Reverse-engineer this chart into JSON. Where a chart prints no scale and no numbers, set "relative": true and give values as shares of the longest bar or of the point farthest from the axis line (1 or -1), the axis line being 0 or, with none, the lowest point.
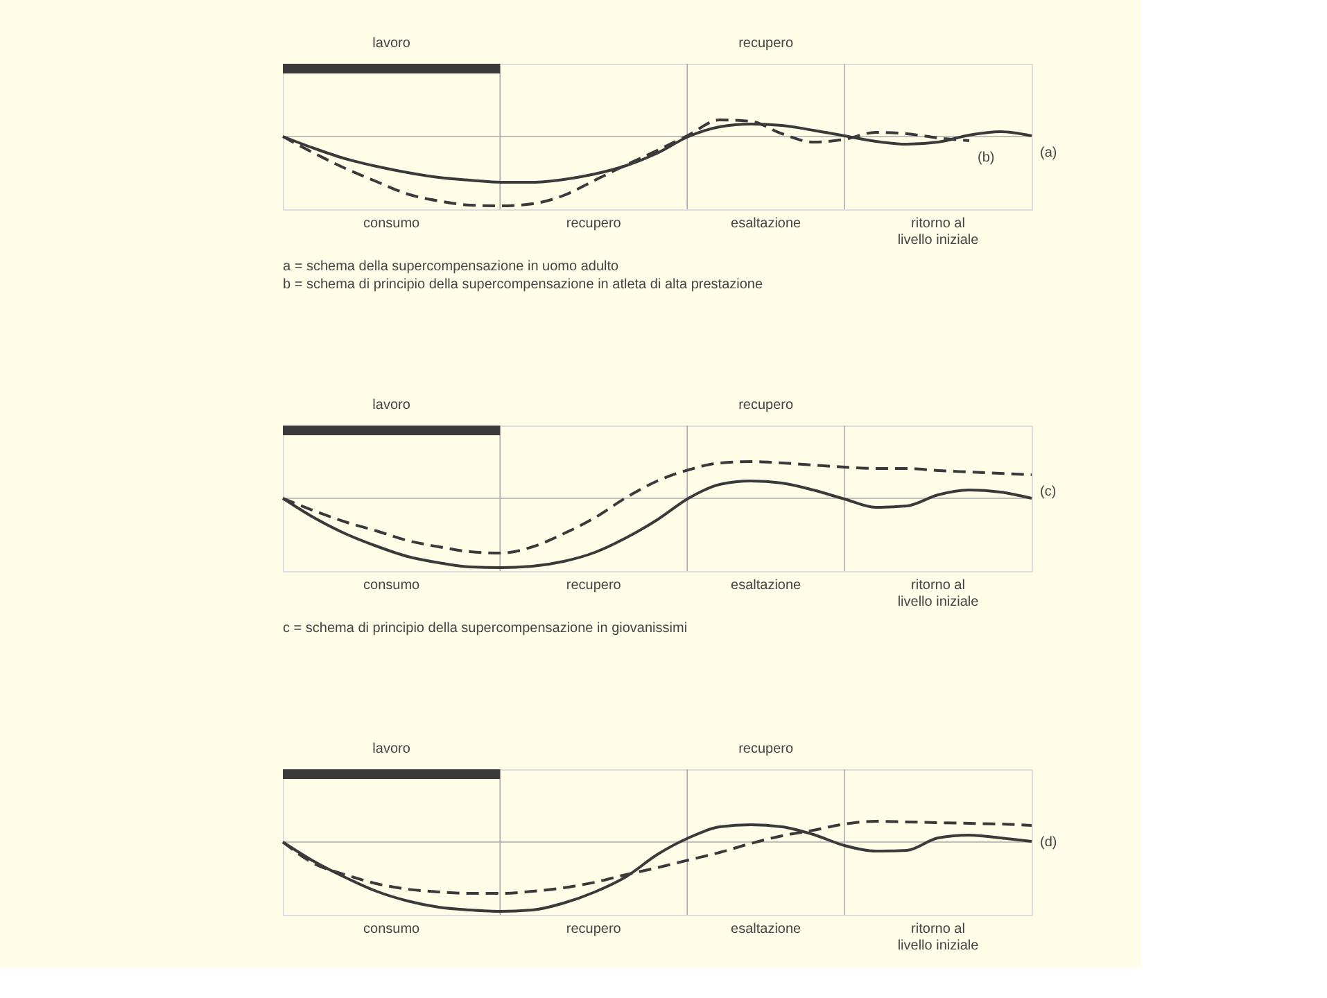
{
  "chart_data": [
    {
      "type": "line",
      "relative": true,
      "grid": true,
      "categories": [
        null,
        null,
        null,
        null,
        null,
        null,
        null,
        null,
        null,
        null,
        null,
        null,
        null,
        null,
        null,
        null,
        null,
        null,
        null,
        null,
        null,
        null,
        null,
        null,
        null
      ],
      "series": [
        {
          "name": "(a)",
          "color": "#3a3a3a",
          "line_style": "solid",
          "values": [
            0,
            -0.17,
            -0.32,
            -0.43,
            -0.52,
            -0.59,
            -0.63,
            -0.66,
            -0.66,
            -0.62,
            -0.54,
            -0.42,
            -0.24,
            0,
            0.14,
            0.18,
            0.16,
            0.09,
            0.01,
            -0.07,
            -0.11,
            -0.08,
            0.02,
            0.07,
            0.01
          ]
        },
        {
          "name": "(b)",
          "color": "#3a3a3a",
          "line_style": "dashed",
          "values": [
            0,
            -0.24,
            -0.46,
            -0.65,
            -0.83,
            -0.93,
            -0.99,
            -1,
            -0.97,
            -0.85,
            -0.63,
            -0.41,
            -0.2,
            0.02,
            0.24,
            0.22,
            0.04,
            -0.08,
            -0.04,
            0.06,
            0.04,
            -0.02,
            -0.06,
            null,
            null
          ]
        }
      ],
      "annotations": [
        "lavoro",
        "recupero",
        "consumo",
        "recupero",
        "esaltazione",
        "ritorno al\nlivello iniziale",
        "a = schema della supercompensazione in uomo adulto",
        "b = schema di principio della supercompensazione in atleta di alta prestazione"
      ]
    },
    {
      "type": "line",
      "relative": true,
      "grid": true,
      "categories": [
        null,
        null,
        null,
        null,
        null,
        null,
        null,
        null,
        null,
        null,
        null,
        null,
        null,
        null,
        null,
        null,
        null,
        null,
        null,
        null,
        null,
        null,
        null,
        null,
        null
      ],
      "series": [
        {
          "color": "#3a3a3a",
          "line_style": "solid",
          "values": [
            0,
            -0.28,
            -0.51,
            -0.69,
            -0.84,
            -0.93,
            -0.99,
            -1,
            -0.98,
            -0.91,
            -0.78,
            -0.57,
            -0.31,
            0,
            0.2,
            0.25,
            0.22,
            0.12,
            -0.01,
            -0.13,
            -0.11,
            0.05,
            0.12,
            0.09,
            0
          ]
        },
        {
          "name": "(c)",
          "color": "#3a3a3a",
          "line_style": "dashed",
          "values": [
            0,
            -0.18,
            -0.34,
            -0.47,
            -0.61,
            -0.7,
            -0.77,
            -0.79,
            -0.7,
            -0.51,
            -0.28,
            0.01,
            0.25,
            0.41,
            0.51,
            0.53,
            0.51,
            0.48,
            0.45,
            0.43,
            0.43,
            0.4,
            0.38,
            0.36,
            0.34
          ]
        }
      ],
      "annotations": [
        "lavoro",
        "recupero",
        "consumo",
        "recupero",
        "esaltazione",
        "ritorno al\nlivello iniziale",
        "c = schema di principio della supercompensazione in giovanissimi"
      ]
    },
    {
      "type": "line",
      "relative": true,
      "grid": true,
      "categories": [
        null,
        null,
        null,
        null,
        null,
        null,
        null,
        null,
        null,
        null,
        null,
        null,
        null,
        null,
        null,
        null,
        null,
        null,
        null,
        null,
        null,
        null,
        null,
        null,
        null
      ],
      "series": [
        {
          "color": "#3a3a3a",
          "line_style": "solid",
          "values": [
            0,
            -0.28,
            -0.51,
            -0.71,
            -0.85,
            -0.94,
            -0.98,
            -1,
            -0.98,
            -0.88,
            -0.72,
            -0.5,
            -0.18,
            0.06,
            0.22,
            0.25,
            0.22,
            0.11,
            -0.05,
            -0.13,
            -0.12,
            0.06,
            0.1,
            0.06,
            0.01
          ]
        },
        {
          "name": "(d)",
          "color": "#3a3a3a",
          "line_style": "dashed",
          "values": [
            0,
            -0.31,
            -0.47,
            -0.6,
            -0.68,
            -0.72,
            -0.74,
            -0.74,
            -0.71,
            -0.66,
            -0.58,
            -0.47,
            -0.37,
            -0.26,
            -0.15,
            -0.02,
            0.09,
            0.17,
            0.26,
            0.3,
            0.29,
            0.28,
            0.27,
            0.26,
            0.24
          ]
        }
      ],
      "annotations": [
        "lavoro",
        "recupero",
        "consumo",
        "recupero",
        "esaltazione",
        "ritorno al\nlivello iniziale"
      ]
    }
  ]
}
